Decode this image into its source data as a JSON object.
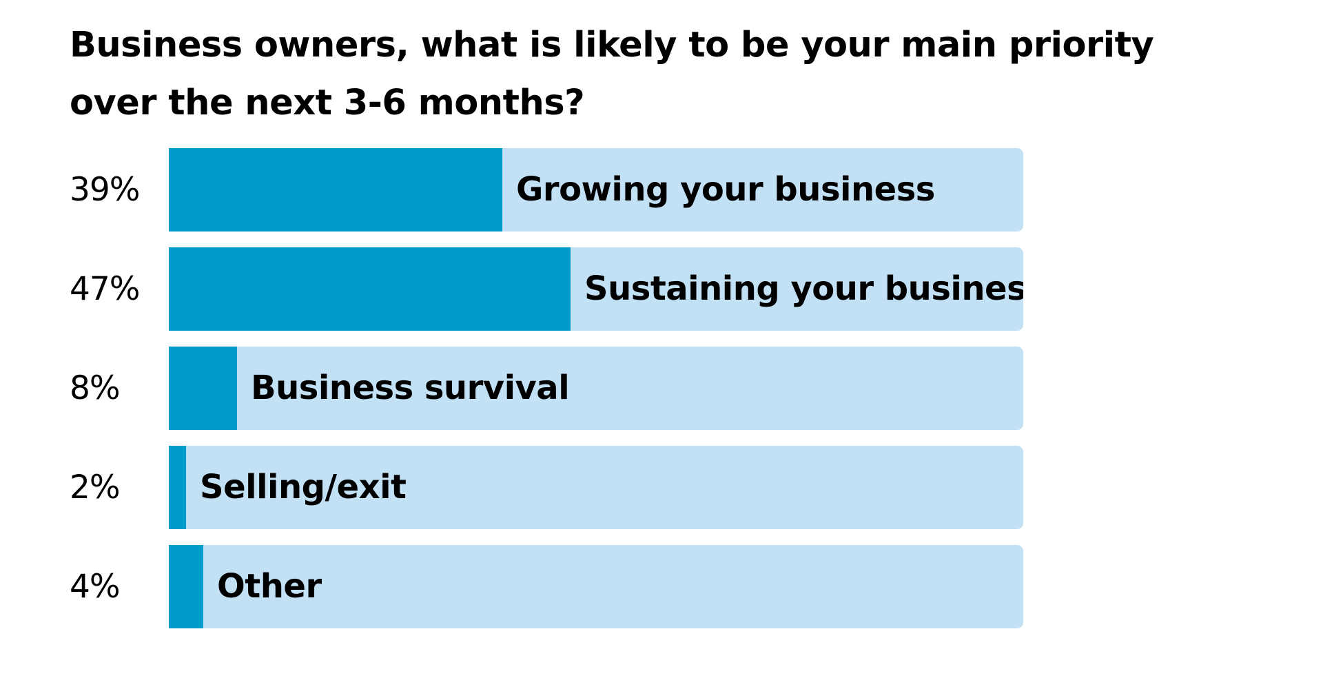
{
  "chart_data": {
    "type": "bar",
    "orientation": "horizontal",
    "title": "Business owners, what is likely to be your main priority over the next 3-6 months?",
    "categories": [
      "Growing your business",
      "Sustaining your business",
      "Business survival",
      "Selling/exit",
      "Other"
    ],
    "values": [
      39,
      47,
      8,
      2,
      4
    ],
    "value_labels": [
      "39%",
      "47%",
      "8%",
      "2%",
      "4%"
    ],
    "xlim": [
      0,
      100
    ],
    "grid": false,
    "legend": "none",
    "colors": {
      "fill": "#009bc8",
      "track": "#c3e1f5",
      "text": "#000000"
    }
  }
}
